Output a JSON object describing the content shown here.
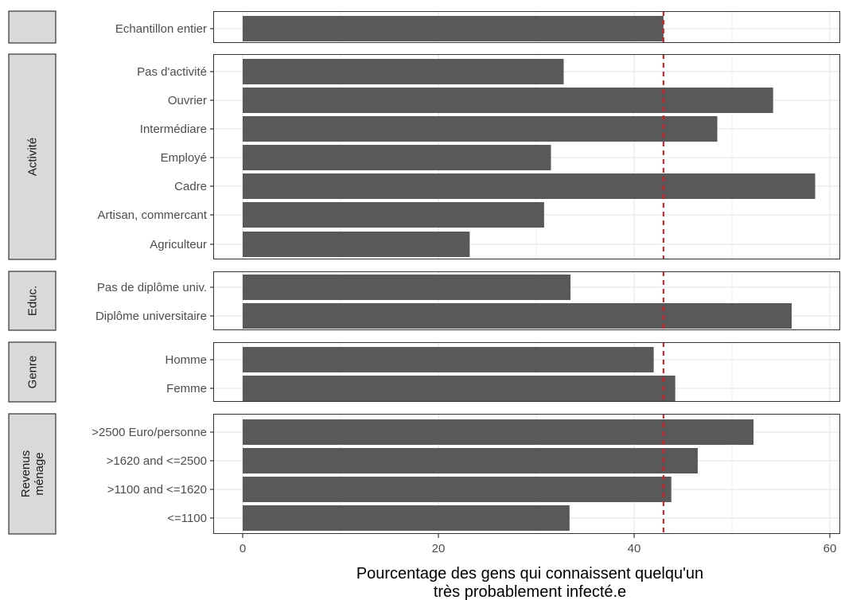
{
  "chart_data": {
    "type": "bar",
    "orientation": "horizontal",
    "xlabel_line1": "Pourcentage des gens qui connaissent quelqu'un",
    "xlabel_line2": "très probablement infecté.e",
    "xlim": [
      0,
      60
    ],
    "x_ticks": [
      "0",
      "20",
      "40",
      "60"
    ],
    "reference_line": 43,
    "grid": true,
    "colors": {
      "bar": "#595959",
      "reference_line": "#e3161b",
      "strip_fill": "#d9d9d9",
      "grid": "#ebebeb"
    },
    "panels": [
      {
        "strip": [
          ""
        ],
        "categories": [
          "Echantillon entier"
        ],
        "values": [
          43
        ]
      },
      {
        "strip": [
          "Activité"
        ],
        "categories": [
          "Pas d'activité",
          "Ouvrier",
          "Intermédiare",
          "Employé",
          "Cadre",
          "Artisan, commercant",
          "Agriculteur"
        ],
        "values": [
          32.8,
          54.2,
          48.5,
          31.5,
          58.5,
          30.8,
          23.2
        ]
      },
      {
        "strip": [
          "Educ."
        ],
        "categories": [
          "Pas de diplôme univ.",
          "Diplôme universitaire"
        ],
        "values": [
          33.5,
          56.1
        ]
      },
      {
        "strip": [
          "Genre"
        ],
        "categories": [
          "Homme",
          "Femme"
        ],
        "values": [
          42,
          44.2
        ]
      },
      {
        "strip": [
          "Revenus",
          "ménage"
        ],
        "categories": [
          ">2500 Euro/personne",
          ">1620 and <=2500",
          ">1100 and <=1620",
          "<=1100"
        ],
        "values": [
          52.2,
          46.5,
          43.8,
          33.4
        ]
      }
    ]
  }
}
